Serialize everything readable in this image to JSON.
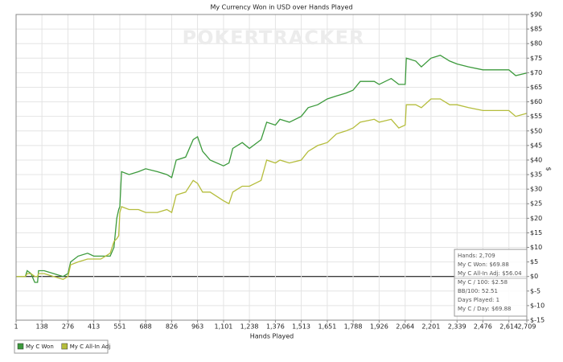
{
  "chart_data": {
    "type": "line",
    "title": "My Currency Won in USD over Hands Played",
    "watermark": "POKERTRACKER",
    "x_label": "Hands Played",
    "y_label": "$",
    "x": [
      1,
      50,
      60,
      80,
      100,
      115,
      120,
      150,
      200,
      250,
      276,
      290,
      330,
      380,
      413,
      450,
      500,
      520,
      535,
      545,
      551,
      560,
      600,
      650,
      688,
      750,
      800,
      826,
      850,
      900,
      940,
      963,
      990,
      1030,
      1101,
      1130,
      1150,
      1200,
      1238,
      1300,
      1330,
      1376,
      1400,
      1450,
      1513,
      1550,
      1600,
      1651,
      1700,
      1750,
      1788,
      1826,
      1900,
      1926,
      1990,
      2030,
      2064,
      2070,
      2120,
      2150,
      2201,
      2250,
      2300,
      2339,
      2400,
      2476,
      2550,
      2614,
      2650,
      2709
    ],
    "series": [
      {
        "name": "My C Won",
        "color": "#3c9a3c",
        "values": [
          0,
          0,
          2,
          1,
          -2,
          -2,
          2,
          2,
          1,
          0,
          1,
          5,
          7,
          8,
          7,
          7,
          7,
          10,
          20,
          23,
          24,
          36,
          35,
          36,
          37,
          36,
          35,
          34,
          40,
          41,
          47,
          48,
          43,
          40,
          38,
          39,
          44,
          46,
          44,
          47,
          53,
          52,
          54,
          53,
          55,
          58,
          59,
          61,
          62,
          63,
          64,
          67,
          67,
          66,
          68,
          66,
          66,
          75,
          74,
          72,
          75,
          76,
          74,
          73,
          72,
          71,
          71,
          71,
          69,
          69.88
        ]
      },
      {
        "name": "My C All-In Adj",
        "color": "#b5bd3c",
        "values": [
          0,
          0,
          1,
          1,
          0,
          0,
          1,
          1,
          0,
          -1,
          0,
          4,
          5,
          6,
          6,
          6,
          8,
          12,
          13,
          14,
          22,
          24,
          23,
          23,
          22,
          22,
          23,
          22,
          28,
          29,
          33,
          32,
          29,
          29,
          26,
          25,
          29,
          31,
          31,
          33,
          40,
          39,
          40,
          39,
          40,
          43,
          45,
          46,
          49,
          50,
          51,
          53,
          54,
          53,
          54,
          51,
          52,
          59,
          59,
          58,
          61,
          61,
          59,
          59,
          58,
          57,
          57,
          57,
          55,
          56.04
        ]
      }
    ],
    "xlim": [
      1,
      2709
    ],
    "ylim": [
      -15,
      90
    ],
    "xticks": [
      1,
      138,
      276,
      413,
      551,
      688,
      826,
      963,
      {
        "value": 1101,
        "label": "1,101"
      },
      {
        "value": 1238,
        "label": "1,238"
      },
      {
        "value": 1376,
        "label": "1,376"
      },
      {
        "value": 1513,
        "label": "1,513"
      },
      {
        "value": 1651,
        "label": "1,651"
      },
      {
        "value": 1788,
        "label": "1,788"
      },
      {
        "value": 1926,
        "label": "1,926"
      },
      {
        "value": 2064,
        "label": "2,064"
      },
      {
        "value": 2201,
        "label": "2,201"
      },
      {
        "value": 2339,
        "label": "2,339"
      },
      {
        "value": 2476,
        "label": "2,476"
      },
      {
        "value": 2614,
        "label": "2,614"
      },
      {
        "value": 2709,
        "label": "2,709"
      }
    ],
    "yticks": [
      {
        "value": 90,
        "label": "$90"
      },
      {
        "value": 85,
        "label": "$85"
      },
      {
        "value": 80,
        "label": "$80"
      },
      {
        "value": 75,
        "label": "$75"
      },
      {
        "value": 70,
        "label": "$70"
      },
      {
        "value": 65,
        "label": "$65"
      },
      {
        "value": 60,
        "label": "$60"
      },
      {
        "value": 55,
        "label": "$55"
      },
      {
        "value": 50,
        "label": "$50"
      },
      {
        "value": 45,
        "label": "$45"
      },
      {
        "value": 40,
        "label": "$40"
      },
      {
        "value": 35,
        "label": "$35"
      },
      {
        "value": 30,
        "label": "$30"
      },
      {
        "value": 25,
        "label": "$25"
      },
      {
        "value": 20,
        "label": "$20"
      },
      {
        "value": 15,
        "label": "$15"
      },
      {
        "value": 10,
        "label": "$10"
      },
      {
        "value": 5,
        "label": "$5"
      },
      {
        "value": 0,
        "label": "$0"
      },
      {
        "value": -5,
        "label": "$-5"
      },
      {
        "value": -10,
        "label": "$-10"
      },
      {
        "value": -15,
        "label": "$-15"
      }
    ],
    "grid": true,
    "info_box": [
      "Hands: 2,709",
      "My C Won: $69.88",
      "My C All-In Adj: $56.04",
      "My C / 100: $2.58",
      "BB/100: 52.51",
      "Days Played: 1",
      "My C / Day: $69.88"
    ]
  }
}
